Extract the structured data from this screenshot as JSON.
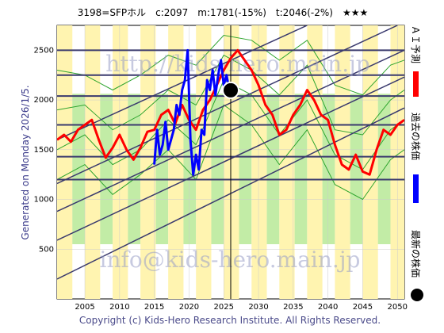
{
  "header": {
    "title": "3198=SFPホル　c:2097　m:1781(-15%)　t:2046(-2%)　★★★"
  },
  "side_label": "Generated on Monday 2026/1/5.",
  "watermarks": [
    "http://kids-hero.main.jp",
    "info@kids-hero.main.jp"
  ],
  "footer": "Copyright (c) Kids-Hero Research Institute. All Rights Reserved.",
  "legend": {
    "ai_forecast": "ＡＩ予測",
    "past_price": "過去の株価",
    "latest_price": "最新の株価"
  },
  "colors": {
    "ai_forecast": "#ff0000",
    "past_price": "#0000ff",
    "latest_price": "#000000",
    "band_light": "#fff4b0",
    "band_green": "#99e06a",
    "band_line": "#2fa52f",
    "trend": "#3a3a6e",
    "grid": "#cccccc"
  },
  "chart_data": {
    "type": "line",
    "xlim": [
      2001,
      2051
    ],
    "ylim": [
      0,
      2750
    ],
    "x_ticks": [
      2005,
      2010,
      2015,
      2020,
      2025,
      2030,
      2035,
      2040,
      2045,
      2050
    ],
    "y_ticks": [
      500,
      1000,
      1500,
      2000,
      2500
    ],
    "grid": true,
    "marker_year": 2026,
    "latest_point": {
      "x": 2026.0,
      "y": 2097
    },
    "horizontal_levels": [
      2500,
      2250,
      2040,
      1750,
      1430,
      1200
    ],
    "trend_lines": [
      {
        "x": [
          2001,
          2037
        ],
        "y": [
          1600,
          2750
        ]
      },
      {
        "x": [
          2001,
          2050
        ],
        "y": [
          1160,
          2750
        ]
      },
      {
        "x": [
          2001,
          2051
        ],
        "y": [
          880,
          2500
        ]
      },
      {
        "x": [
          2001,
          2051
        ],
        "y": [
          590,
          2230
        ]
      },
      {
        "x": [
          2001,
          2051
        ],
        "y": [
          200,
          1920
        ]
      }
    ],
    "series": [
      {
        "name": "ＡＩ予測",
        "x": [
          2001,
          2002,
          2003,
          2004,
          2005,
          2006,
          2007,
          2008,
          2009,
          2010,
          2011,
          2012,
          2013,
          2014,
          2015,
          2016,
          2017,
          2018,
          2019,
          2020,
          2021,
          2022,
          2023,
          2024,
          2025,
          2026,
          2027,
          2028,
          2029,
          2030,
          2031,
          2032,
          2033,
          2034,
          2035,
          2036,
          2037,
          2038,
          2039,
          2040,
          2041,
          2042,
          2043,
          2044,
          2045,
          2046,
          2047,
          2048,
          2049,
          2050,
          2051
        ],
        "y": [
          1600,
          1650,
          1580,
          1700,
          1750,
          1800,
          1600,
          1420,
          1520,
          1650,
          1500,
          1400,
          1520,
          1680,
          1700,
          1850,
          1900,
          1760,
          1950,
          1800,
          1700,
          1900,
          2000,
          2150,
          2300,
          2420,
          2500,
          2400,
          2300,
          2150,
          1950,
          1850,
          1650,
          1700,
          1850,
          1950,
          2100,
          2000,
          1850,
          1800,
          1550,
          1350,
          1300,
          1450,
          1280,
          1250,
          1500,
          1700,
          1650,
          1750,
          1800
        ]
      },
      {
        "name": "過去の株価",
        "x": [
          2015.0,
          2015.4,
          2015.8,
          2016.2,
          2016.6,
          2017.0,
          2017.4,
          2017.8,
          2018.2,
          2018.6,
          2019.0,
          2019.4,
          2019.8,
          2020.2,
          2020.6,
          2021.0,
          2021.4,
          2021.8,
          2022.2,
          2022.6,
          2023.0,
          2023.4,
          2023.8,
          2024.2,
          2024.6,
          2025.0,
          2025.4,
          2025.8
        ],
        "y": [
          1350,
          1700,
          1450,
          1550,
          1780,
          1500,
          1600,
          1700,
          1950,
          1850,
          2100,
          2200,
          2500,
          1600,
          1250,
          1450,
          1300,
          1700,
          1650,
          2200,
          2100,
          2300,
          2050,
          2250,
          2400,
          2150,
          2250,
          2100
        ]
      }
    ],
    "green_lines": [
      {
        "x": [
          2001,
          2005,
          2009,
          2013,
          2017,
          2021,
          2025,
          2029,
          2033,
          2037,
          2041,
          2045,
          2049,
          2051
        ],
        "y": [
          1900,
          1950,
          1700,
          1850,
          2100,
          1950,
          2450,
          2300,
          2050,
          2350,
          1700,
          1650,
          2000,
          2100
        ]
      },
      {
        "x": [
          2001,
          2005,
          2009,
          2013,
          2017,
          2021,
          2025,
          2029,
          2033,
          2037,
          2041,
          2045,
          2049,
          2051
        ],
        "y": [
          1500,
          1650,
          1350,
          1500,
          1800,
          1550,
          2200,
          2050,
          1650,
          2000,
          1450,
          1300,
          1700,
          1800
        ]
      },
      {
        "x": [
          2001,
          2005,
          2009,
          2013,
          2017,
          2021,
          2025,
          2029,
          2033,
          2037,
          2041,
          2045,
          2049,
          2051
        ],
        "y": [
          1200,
          1350,
          1050,
          1250,
          1500,
          1200,
          1950,
          1750,
          1350,
          1700,
          1150,
          1000,
          1400,
          1500
        ]
      },
      {
        "x": [
          2001,
          2005,
          2009,
          2013,
          2017,
          2021,
          2025,
          2029,
          2033,
          2037,
          2041,
          2045,
          2049,
          2051
        ],
        "y": [
          2300,
          2250,
          2100,
          2250,
          2450,
          2350,
          2650,
          2600,
          2400,
          2600,
          2150,
          2050,
          2350,
          2400
        ]
      }
    ]
  }
}
